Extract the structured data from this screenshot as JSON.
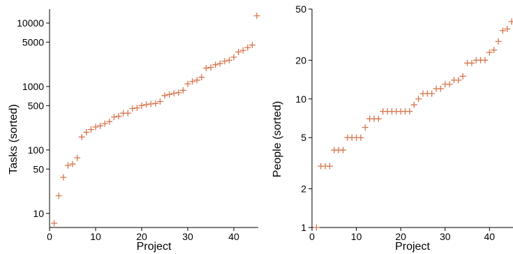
{
  "chart_data": [
    {
      "type": "scatter",
      "marker": "+",
      "xlabel": "Project",
      "ylabel": "Tasks (sorted)",
      "xscale": "linear",
      "yscale": "log",
      "xlim": [
        0,
        45.3
      ],
      "ylim": [
        6,
        16600
      ],
      "xticks": [
        0,
        10,
        20,
        30,
        40
      ],
      "xtick_labels": [
        "0",
        "10",
        "20",
        "30",
        "40"
      ],
      "yticks": [
        10,
        50,
        100,
        500,
        1000,
        5000,
        10000
      ],
      "ytick_labels": [
        "10",
        "50",
        "100",
        "500",
        "1000",
        "5000",
        "10000"
      ],
      "grid": false,
      "series": [
        {
          "x": [
            1,
            2,
            3,
            4,
            5,
            6,
            7,
            8,
            9,
            10,
            11,
            12,
            13,
            14,
            15,
            16,
            17,
            18,
            19,
            20,
            21,
            22,
            23,
            24,
            25,
            26,
            27,
            28,
            29,
            30,
            31,
            32,
            33,
            34,
            35,
            36,
            37,
            38,
            39,
            40,
            41,
            42,
            43,
            44,
            45
          ],
          "y": [
            7,
            19,
            37,
            57,
            60,
            75,
            160,
            190,
            210,
            230,
            240,
            260,
            280,
            330,
            340,
            380,
            380,
            450,
            460,
            500,
            520,
            530,
            540,
            580,
            720,
            750,
            780,
            800,
            870,
            1100,
            1200,
            1260,
            1400,
            1950,
            2000,
            2200,
            2300,
            2500,
            2600,
            2900,
            3500,
            3700,
            4100,
            4500,
            13000
          ]
        }
      ],
      "color": "#d6764f"
    },
    {
      "type": "scatter",
      "marker": "+",
      "xlabel": "Project",
      "ylabel": "People (sorted)",
      "xscale": "linear",
      "yscale": "log",
      "xlim": [
        0,
        45.3
      ],
      "ylim": [
        1,
        50
      ],
      "xticks": [
        0,
        10,
        20,
        30,
        40
      ],
      "xtick_labels": [
        "0",
        "10",
        "20",
        "30",
        "40"
      ],
      "yticks": [
        1,
        2,
        5,
        10,
        20,
        50
      ],
      "ytick_labels": [
        "1",
        "2",
        "5",
        "10",
        "20",
        "50"
      ],
      "grid": false,
      "series": [
        {
          "x": [
            1,
            2,
            3,
            4,
            5,
            6,
            7,
            8,
            9,
            10,
            11,
            12,
            13,
            14,
            15,
            16,
            17,
            18,
            19,
            20,
            21,
            22,
            23,
            24,
            25,
            26,
            27,
            28,
            29,
            30,
            31,
            32,
            33,
            34,
            35,
            36,
            37,
            38,
            39,
            40,
            41,
            42,
            43,
            44,
            45
          ],
          "y": [
            1,
            3,
            3,
            3,
            4,
            4,
            4,
            5,
            5,
            5,
            5,
            6,
            7,
            7,
            7,
            8,
            8,
            8,
            8,
            8,
            8,
            8,
            9,
            10,
            11,
            11,
            11,
            12,
            12,
            13,
            13,
            14,
            14,
            15,
            19,
            19,
            20,
            20,
            20,
            23,
            24,
            28,
            34,
            35,
            40
          ]
        }
      ],
      "color": "#d6764f"
    }
  ]
}
